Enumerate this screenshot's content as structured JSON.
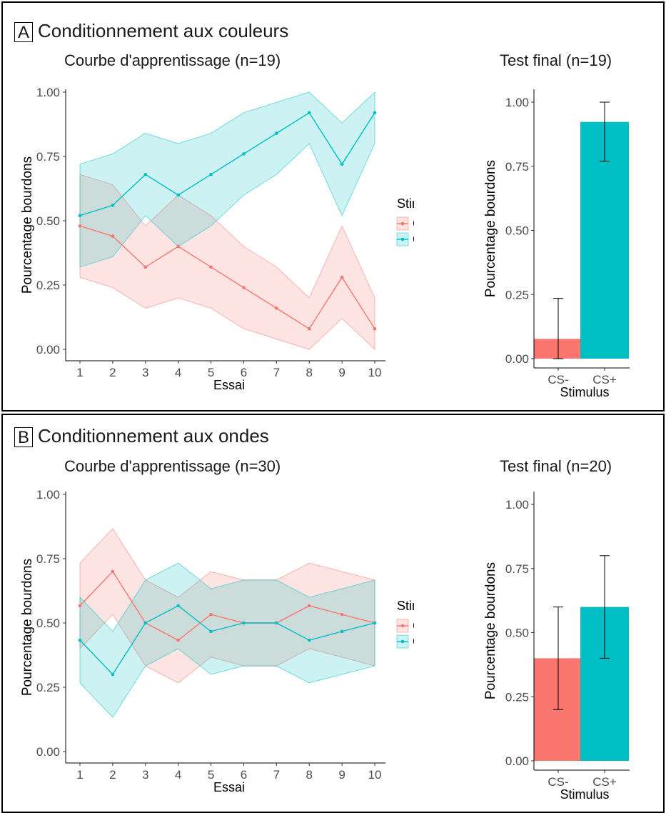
{
  "colors": {
    "cs_minus": "#F8766D",
    "cs_plus": "#00BFC4"
  },
  "legend_title": "Stimulus",
  "panels": [
    {
      "letter": "A",
      "title": "Conditionnement aux couleurs",
      "learning_title": "Courbe d'apprentissage (n=19)",
      "final_title": "Test final (n=19)"
    },
    {
      "letter": "B",
      "title": "Conditionnement aux ondes",
      "learning_title": "Courbe d'apprentissage (n=30)",
      "final_title": "Test final (n=20)"
    }
  ],
  "chart_data": [
    {
      "type": "line",
      "panel": "A",
      "title": "Courbe d'apprentissage (n=19)",
      "xlabel": "Essai",
      "ylabel": "Pourcentage bourdons",
      "x": [
        1,
        2,
        3,
        4,
        5,
        6,
        7,
        8,
        9,
        10
      ],
      "ylim": [
        0,
        1
      ],
      "yticks": [
        "0.00",
        "0.25",
        "0.50",
        "0.75",
        "1.00"
      ],
      "grid": false,
      "legend": {
        "title": "Stimulus",
        "placement": "right"
      },
      "series": [
        {
          "name": "CS-",
          "color": "#F8766D",
          "values": [
            0.48,
            0.44,
            0.32,
            0.4,
            0.32,
            0.24,
            0.16,
            0.08,
            0.28,
            0.08
          ],
          "lower": [
            0.28,
            0.24,
            0.16,
            0.2,
            0.16,
            0.08,
            0.04,
            0.0,
            0.12,
            0.0
          ],
          "upper": [
            0.68,
            0.64,
            0.48,
            0.6,
            0.52,
            0.4,
            0.32,
            0.2,
            0.48,
            0.2
          ]
        },
        {
          "name": "CS+",
          "color": "#00BFC4",
          "values": [
            0.52,
            0.56,
            0.68,
            0.6,
            0.68,
            0.76,
            0.84,
            0.92,
            0.72,
            0.92
          ],
          "lower": [
            0.32,
            0.36,
            0.52,
            0.4,
            0.48,
            0.6,
            0.68,
            0.8,
            0.52,
            0.8
          ],
          "upper": [
            0.72,
            0.76,
            0.84,
            0.8,
            0.84,
            0.92,
            0.96,
            1.0,
            0.88,
            1.0
          ]
        }
      ]
    },
    {
      "type": "bar",
      "panel": "A",
      "title": "Test final (n=19)",
      "xlabel": "Stimulus",
      "ylabel": "Pourcentage bourdons",
      "categories": [
        "CS-",
        "CS+"
      ],
      "values": [
        0.077,
        0.923
      ],
      "error_low": [
        0.0,
        0.77
      ],
      "error_high": [
        0.235,
        1.0
      ],
      "colors": [
        "#F8766D",
        "#00BFC4"
      ],
      "ylim": [
        0,
        1
      ],
      "yticks": [
        "0.00",
        "0.25",
        "0.50",
        "0.75",
        "1.00"
      ]
    },
    {
      "type": "line",
      "panel": "B",
      "title": "Courbe d'apprentissage (n=30)",
      "xlabel": "Essai",
      "ylabel": "Pourcentage bourdons",
      "x": [
        1,
        2,
        3,
        4,
        5,
        6,
        7,
        8,
        9,
        10
      ],
      "ylim": [
        0,
        1
      ],
      "yticks": [
        "0.00",
        "0.25",
        "0.50",
        "0.75",
        "1.00"
      ],
      "grid": false,
      "legend": {
        "title": "Stimulus",
        "placement": "right"
      },
      "series": [
        {
          "name": "CS-",
          "color": "#F8766D",
          "values": [
            0.567,
            0.7,
            0.5,
            0.433,
            0.533,
            0.5,
            0.5,
            0.567,
            0.533,
            0.5
          ],
          "lower": [
            0.4,
            0.533,
            0.333,
            0.267,
            0.367,
            0.333,
            0.333,
            0.4,
            0.367,
            0.333
          ],
          "upper": [
            0.733,
            0.867,
            0.667,
            0.6,
            0.7,
            0.667,
            0.667,
            0.733,
            0.7,
            0.667
          ]
        },
        {
          "name": "CS+",
          "color": "#00BFC4",
          "values": [
            0.433,
            0.3,
            0.5,
            0.567,
            0.467,
            0.5,
            0.5,
            0.433,
            0.467,
            0.5
          ],
          "lower": [
            0.267,
            0.133,
            0.333,
            0.4,
            0.3,
            0.333,
            0.333,
            0.267,
            0.3,
            0.333
          ],
          "upper": [
            0.6,
            0.467,
            0.667,
            0.733,
            0.633,
            0.667,
            0.667,
            0.6,
            0.633,
            0.667
          ]
        }
      ]
    },
    {
      "type": "bar",
      "panel": "B",
      "title": "Test final (n=20)",
      "xlabel": "Stimulus",
      "ylabel": "Pourcentage bourdons",
      "categories": [
        "CS-",
        "CS+"
      ],
      "values": [
        0.4,
        0.6
      ],
      "error_low": [
        0.2,
        0.4
      ],
      "error_high": [
        0.6,
        0.8
      ],
      "colors": [
        "#F8766D",
        "#00BFC4"
      ],
      "ylim": [
        0,
        1
      ],
      "yticks": [
        "0.00",
        "0.25",
        "0.50",
        "0.75",
        "1.00"
      ]
    }
  ]
}
